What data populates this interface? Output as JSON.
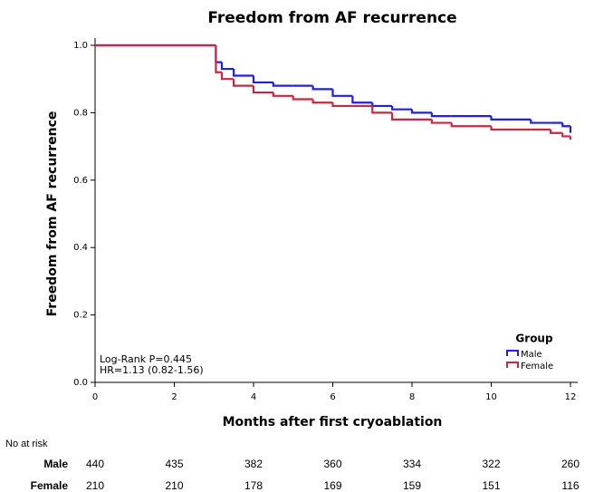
{
  "chart_data": {
    "type": "step",
    "title": "Freedom from AF recurrence",
    "x_label": "Months after first cryoablation",
    "y_label": "Freedom from AF recurrence",
    "annotations": [
      "Log-Rank P=0.445",
      "HR=1.13 (0.82-1.56)"
    ],
    "legend_title": "Group",
    "x": [
      0,
      3,
      3.05,
      3.2,
      3.5,
      4,
      4.5,
      5,
      5.5,
      6,
      6.5,
      7,
      7.5,
      8,
      8.5,
      9,
      10,
      11,
      11.5,
      11.8,
      12
    ],
    "series": [
      {
        "name": "Male",
        "color": "#2020e0",
        "values": [
          1,
          1,
          0.95,
          0.93,
          0.91,
          0.89,
          0.88,
          0.88,
          0.87,
          0.85,
          0.83,
          0.82,
          0.81,
          0.8,
          0.79,
          0.79,
          0.78,
          0.77,
          0.77,
          0.76,
          0.74
        ]
      },
      {
        "name": "Female",
        "color": "#c82840",
        "values": [
          1,
          1,
          0.92,
          0.9,
          0.88,
          0.86,
          0.85,
          0.84,
          0.83,
          0.82,
          0.82,
          0.8,
          0.78,
          0.78,
          0.77,
          0.76,
          0.75,
          0.75,
          0.74,
          0.73,
          0.72
        ]
      }
    ],
    "xlim": [
      0,
      12
    ],
    "xticks": [
      0,
      2,
      4,
      6,
      8,
      10,
      12
    ],
    "ylim": [
      0,
      1
    ],
    "yticks": [
      {
        "value": 0,
        "label": "0.0"
      },
      {
        "value": 0.2,
        "label": "0.2"
      },
      {
        "value": 0.4,
        "label": "0.4"
      },
      {
        "value": 0.6,
        "label": "0.6"
      },
      {
        "value": 0.8,
        "label": "0.8"
      },
      {
        "value": 1,
        "label": "1.0"
      }
    ],
    "risk_table": {
      "title": "No at risk",
      "rows": [
        {
          "label": "Male",
          "values": [
            440,
            435,
            382,
            360,
            334,
            322,
            260
          ]
        },
        {
          "label": "Female",
          "values": [
            210,
            210,
            178,
            169,
            159,
            151,
            116
          ]
        }
      ]
    }
  }
}
